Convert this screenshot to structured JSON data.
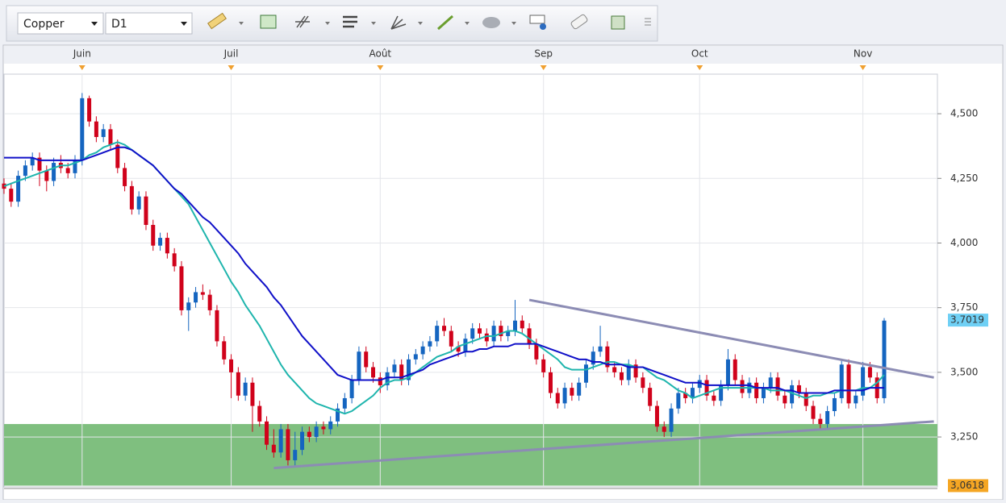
{
  "toolbar": {
    "symbol": "Copper",
    "timeframe": "D1"
  },
  "chart_data": {
    "type": "candlestick",
    "categories": [
      null,
      null,
      null,
      null,
      null,
      null,
      null,
      null,
      null,
      null,
      null,
      "Juin",
      null,
      null,
      null,
      null,
      null,
      null,
      null,
      null,
      null,
      null,
      null,
      null,
      null,
      null,
      null,
      null,
      null,
      null,
      null,
      null,
      "Juil",
      null,
      null,
      null,
      null,
      null,
      null,
      null,
      null,
      null,
      null,
      null,
      null,
      null,
      null,
      null,
      null,
      null,
      null,
      null,
      null,
      "Août",
      null,
      null,
      null,
      null,
      null,
      null,
      null,
      null,
      null,
      null,
      null,
      null,
      null,
      null,
      null,
      null,
      null,
      null,
      null,
      null,
      null,
      null,
      "Sep",
      null,
      null,
      null,
      null,
      null,
      null,
      null,
      null,
      null,
      null,
      null,
      null,
      null,
      null,
      null,
      null,
      null,
      null,
      null,
      null,
      null,
      "Oct",
      null,
      null,
      null,
      null,
      null,
      null,
      null,
      null,
      null,
      null,
      null,
      null,
      null,
      null,
      null,
      null,
      null,
      null,
      null,
      null,
      null,
      null,
      "Nov",
      null,
      null,
      null
    ],
    "open": [
      4.23,
      4.21,
      4.16,
      4.26,
      4.3,
      4.33,
      4.28,
      4.24,
      4.31,
      4.29,
      4.27,
      4.32,
      4.56,
      4.47,
      4.41,
      4.44,
      4.38,
      4.29,
      4.22,
      4.13,
      4.18,
      4.07,
      3.99,
      4.02,
      3.96,
      3.91,
      3.74,
      3.77,
      3.81,
      3.8,
      3.74,
      3.62,
      3.55,
      3.5,
      3.41,
      3.46,
      3.37,
      3.31,
      3.22,
      3.19,
      3.28,
      3.16,
      3.2,
      3.27,
      3.25,
      3.29,
      3.28,
      3.31,
      3.36,
      3.4,
      3.47,
      3.58,
      3.52,
      3.48,
      3.45,
      3.5,
      3.53,
      3.47,
      3.55,
      3.57,
      3.6,
      3.62,
      3.68,
      3.66,
      3.6,
      3.58,
      3.63,
      3.67,
      3.65,
      3.62,
      3.68,
      3.64,
      3.66,
      3.7,
      3.67,
      3.61,
      3.55,
      3.5,
      3.42,
      3.38,
      3.44,
      3.41,
      3.46,
      3.53,
      3.58,
      3.6,
      3.52,
      3.5,
      3.47,
      3.53,
      3.48,
      3.44,
      3.37,
      3.29,
      3.27,
      3.36,
      3.42,
      3.4,
      3.44,
      3.47,
      3.41,
      3.39,
      3.45,
      3.55,
      3.47,
      3.42,
      3.46,
      3.4,
      3.44,
      3.48,
      3.41,
      3.38,
      3.45,
      3.42,
      3.37,
      3.32,
      3.3,
      3.35,
      3.4,
      3.53,
      3.38,
      3.41,
      3.52,
      3.48,
      3.4
    ],
    "high": [
      4.25,
      4.23,
      4.28,
      4.32,
      4.35,
      4.35,
      4.3,
      4.33,
      4.34,
      4.31,
      4.34,
      4.58,
      4.57,
      4.49,
      4.46,
      4.46,
      4.4,
      4.31,
      4.24,
      4.2,
      4.2,
      4.09,
      4.04,
      4.04,
      3.98,
      3.93,
      3.79,
      3.83,
      3.84,
      3.82,
      3.76,
      3.64,
      3.57,
      3.52,
      3.48,
      3.48,
      3.39,
      3.33,
      3.28,
      3.3,
      3.3,
      3.27,
      3.29,
      3.29,
      3.31,
      3.31,
      3.33,
      3.38,
      3.42,
      3.49,
      3.6,
      3.6,
      3.54,
      3.5,
      3.52,
      3.55,
      3.55,
      3.57,
      3.59,
      3.62,
      3.64,
      3.7,
      3.71,
      3.68,
      3.62,
      3.65,
      3.69,
      3.69,
      3.67,
      3.7,
      3.7,
      3.68,
      3.78,
      3.72,
      3.69,
      3.63,
      3.57,
      3.52,
      3.44,
      3.46,
      3.46,
      3.48,
      3.55,
      3.6,
      3.68,
      3.62,
      3.54,
      3.52,
      3.55,
      3.55,
      3.5,
      3.46,
      3.39,
      3.31,
      3.38,
      3.44,
      3.44,
      3.46,
      3.49,
      3.49,
      3.43,
      3.47,
      3.59,
      3.57,
      3.49,
      3.48,
      3.48,
      3.46,
      3.5,
      3.5,
      3.43,
      3.47,
      3.47,
      3.44,
      3.39,
      3.34,
      3.37,
      3.42,
      3.55,
      3.55,
      3.43,
      3.54,
      3.54,
      3.5,
      3.71
    ],
    "low": [
      4.19,
      4.14,
      4.14,
      4.24,
      4.28,
      4.22,
      4.2,
      4.22,
      4.27,
      4.25,
      4.25,
      4.3,
      4.45,
      4.39,
      4.39,
      4.36,
      4.27,
      4.2,
      4.11,
      4.11,
      4.05,
      3.97,
      3.97,
      3.94,
      3.89,
      3.72,
      3.66,
      3.75,
      3.78,
      3.72,
      3.6,
      3.53,
      3.4,
      3.39,
      3.39,
      3.27,
      3.29,
      3.2,
      3.17,
      3.17,
      3.14,
      3.14,
      3.18,
      3.23,
      3.23,
      3.26,
      3.26,
      3.29,
      3.34,
      3.38,
      3.45,
      3.5,
      3.46,
      3.42,
      3.43,
      3.48,
      3.45,
      3.45,
      3.53,
      3.55,
      3.58,
      3.6,
      3.64,
      3.58,
      3.56,
      3.56,
      3.61,
      3.63,
      3.6,
      3.6,
      3.62,
      3.62,
      3.64,
      3.65,
      3.59,
      3.53,
      3.48,
      3.4,
      3.36,
      3.36,
      3.39,
      3.39,
      3.44,
      3.51,
      3.56,
      3.5,
      3.48,
      3.45,
      3.45,
      3.46,
      3.42,
      3.35,
      3.27,
      3.25,
      3.25,
      3.34,
      3.38,
      3.38,
      3.42,
      3.39,
      3.37,
      3.37,
      3.43,
      3.45,
      3.4,
      3.4,
      3.38,
      3.38,
      3.42,
      3.39,
      3.36,
      3.36,
      3.4,
      3.35,
      3.3,
      3.28,
      3.28,
      3.33,
      3.38,
      3.36,
      3.36,
      3.39,
      3.46,
      3.38,
      3.38
    ],
    "close": [
      4.21,
      4.16,
      4.26,
      4.3,
      4.33,
      4.28,
      4.24,
      4.31,
      4.29,
      4.27,
      4.32,
      4.56,
      4.47,
      4.41,
      4.44,
      4.38,
      4.29,
      4.22,
      4.13,
      4.18,
      4.07,
      3.99,
      4.02,
      3.96,
      3.91,
      3.74,
      3.77,
      3.81,
      3.8,
      3.74,
      3.62,
      3.55,
      3.5,
      3.41,
      3.46,
      3.37,
      3.31,
      3.22,
      3.19,
      3.28,
      3.16,
      3.2,
      3.27,
      3.25,
      3.29,
      3.28,
      3.31,
      3.36,
      3.4,
      3.47,
      3.58,
      3.52,
      3.48,
      3.45,
      3.5,
      3.53,
      3.47,
      3.55,
      3.57,
      3.6,
      3.62,
      3.68,
      3.66,
      3.6,
      3.58,
      3.63,
      3.67,
      3.65,
      3.62,
      3.68,
      3.64,
      3.66,
      3.7,
      3.67,
      3.61,
      3.55,
      3.5,
      3.42,
      3.38,
      3.44,
      3.41,
      3.46,
      3.53,
      3.58,
      3.6,
      3.52,
      3.5,
      3.47,
      3.53,
      3.48,
      3.44,
      3.37,
      3.29,
      3.27,
      3.36,
      3.42,
      3.4,
      3.44,
      3.47,
      3.41,
      3.39,
      3.45,
      3.55,
      3.47,
      3.42,
      3.46,
      3.4,
      3.44,
      3.48,
      3.41,
      3.38,
      3.45,
      3.42,
      3.37,
      3.32,
      3.3,
      3.35,
      3.4,
      3.53,
      3.38,
      3.41,
      3.52,
      3.48,
      3.4,
      3.7
    ],
    "up_color": "#1565c0",
    "down_color": "#d0021b",
    "moving_averages": [
      {
        "color": "#1fb5ad",
        "values": [
          4.22,
          4.23,
          4.24,
          4.25,
          4.26,
          4.27,
          4.28,
          4.29,
          4.3,
          4.3,
          4.31,
          4.32,
          4.34,
          4.35,
          4.37,
          4.38,
          4.39,
          4.38,
          4.36,
          4.34,
          4.32,
          4.3,
          4.27,
          4.24,
          4.21,
          4.18,
          4.15,
          4.1,
          4.05,
          4.0,
          3.95,
          3.9,
          3.85,
          3.81,
          3.76,
          3.72,
          3.68,
          3.63,
          3.58,
          3.53,
          3.49,
          3.46,
          3.43,
          3.4,
          3.38,
          3.37,
          3.36,
          3.35,
          3.34,
          3.35,
          3.37,
          3.39,
          3.41,
          3.44,
          3.46,
          3.47,
          3.47,
          3.48,
          3.5,
          3.52,
          3.54,
          3.56,
          3.57,
          3.58,
          3.6,
          3.61,
          3.62,
          3.63,
          3.64,
          3.64,
          3.65,
          3.66,
          3.66,
          3.65,
          3.63,
          3.61,
          3.59,
          3.57,
          3.55,
          3.52,
          3.51,
          3.51,
          3.51,
          3.52,
          3.53,
          3.54,
          3.54,
          3.53,
          3.53,
          3.52,
          3.52,
          3.5,
          3.48,
          3.47,
          3.45,
          3.43,
          3.42,
          3.4,
          3.41,
          3.42,
          3.43,
          3.44,
          3.44,
          3.44,
          3.44,
          3.44,
          3.44,
          3.44,
          3.43,
          3.43,
          3.43,
          3.42,
          3.41,
          3.4,
          3.41,
          3.41,
          3.42,
          3.42,
          3.43,
          3.43,
          3.43,
          3.44,
          3.44,
          3.46,
          3.49
        ]
      },
      {
        "color": "#1010c8",
        "values": [
          4.33,
          4.33,
          4.33,
          4.33,
          4.33,
          4.32,
          4.32,
          4.32,
          4.32,
          4.32,
          4.32,
          4.32,
          4.33,
          4.34,
          4.35,
          4.36,
          4.37,
          4.37,
          4.36,
          4.34,
          4.32,
          4.3,
          4.27,
          4.24,
          4.21,
          4.19,
          4.16,
          4.13,
          4.1,
          4.08,
          4.05,
          4.02,
          3.99,
          3.96,
          3.92,
          3.89,
          3.86,
          3.83,
          3.79,
          3.76,
          3.72,
          3.68,
          3.64,
          3.61,
          3.58,
          3.55,
          3.52,
          3.49,
          3.48,
          3.47,
          3.47,
          3.47,
          3.47,
          3.47,
          3.48,
          3.48,
          3.48,
          3.49,
          3.5,
          3.51,
          3.53,
          3.54,
          3.55,
          3.56,
          3.57,
          3.58,
          3.58,
          3.59,
          3.59,
          3.6,
          3.6,
          3.6,
          3.61,
          3.61,
          3.61,
          3.61,
          3.6,
          3.59,
          3.58,
          3.57,
          3.56,
          3.55,
          3.55,
          3.54,
          3.54,
          3.53,
          3.53,
          3.53,
          3.52,
          3.52,
          3.52,
          3.51,
          3.5,
          3.49,
          3.48,
          3.47,
          3.46,
          3.46,
          3.46,
          3.45,
          3.45,
          3.45,
          3.45,
          3.45,
          3.45,
          3.45,
          3.44,
          3.44,
          3.44,
          3.44,
          3.43,
          3.43,
          3.42,
          3.42,
          3.42,
          3.42,
          3.42,
          3.43,
          3.43,
          3.43,
          3.43,
          3.43,
          3.44,
          3.44,
          3.44
        ]
      }
    ],
    "trendlines": [
      {
        "color": "#8c8cb4",
        "x": [
          74,
          131
        ],
        "y": [
          3.78,
          3.48
        ]
      },
      {
        "color": "#8c8cb4",
        "x": [
          38,
          131
        ],
        "y": [
          3.13,
          3.31
        ]
      }
    ],
    "zone": {
      "color": "#7fbf7f",
      "y": [
        3.0618,
        3.3
      ]
    },
    "price_labels": [
      {
        "value": 3.7019,
        "label": "3,7019",
        "color": "#6fd0f5"
      },
      {
        "value": 3.0618,
        "label": "3,0618",
        "color": "#f5a623"
      }
    ],
    "xlim": [
      0,
      131.5
    ],
    "ylim": [
      3.057,
      4.653
    ],
    "yticks": [
      {
        "value": 3.25,
        "label": "3,250"
      },
      {
        "value": 3.5,
        "label": "3,500"
      },
      {
        "value": 3.75,
        "label": "3,750"
      },
      {
        "value": 4,
        "label": "4,000"
      },
      {
        "value": 4.25,
        "label": "4,250"
      },
      {
        "value": 4.5,
        "label": "4,500"
      }
    ],
    "grid": true
  }
}
